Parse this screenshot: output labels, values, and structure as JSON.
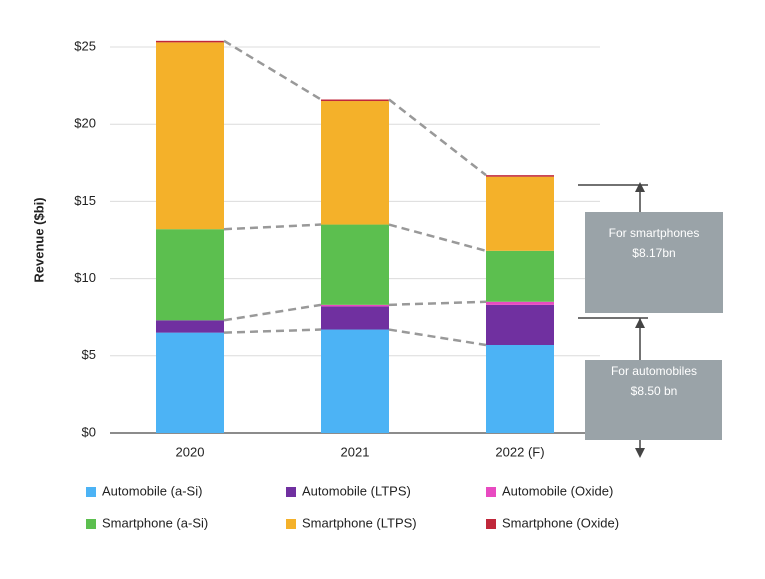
{
  "chart_data": {
    "type": "stacked_bar",
    "ylabel": "Revenue ($bi)",
    "categories": [
      "2020",
      "2021",
      "2022 (F)"
    ],
    "series": [
      {
        "name": "Automobile (a-Si)",
        "color": "#4cb3f5",
        "values": [
          6.5,
          6.7,
          5.7
        ]
      },
      {
        "name": "Automobile (LTPS)",
        "color": "#7030a0",
        "values": [
          0.8,
          1.5,
          2.6
        ]
      },
      {
        "name": "Automobile (Oxide)",
        "color": "#e84ac1",
        "values": [
          0,
          0.1,
          0.2
        ]
      },
      {
        "name": "Smartphone (a-Si)",
        "color": "#5cbf4f",
        "values": [
          5.9,
          5.2,
          3.3
        ]
      },
      {
        "name": "Smartphone (LTPS)",
        "color": "#f4b12a",
        "values": [
          12.1,
          8.0,
          4.8
        ]
      },
      {
        "name": "Smartphone (Oxide)",
        "color": "#c0273a",
        "values": [
          0.1,
          0.1,
          0.1
        ]
      }
    ],
    "ylim": [
      0,
      25
    ],
    "yticks": [
      {
        "value": 0,
        "label": "$0"
      },
      {
        "value": 5,
        "label": "$5"
      },
      {
        "value": 10,
        "label": "$10"
      },
      {
        "value": 15,
        "label": "$15"
      },
      {
        "value": 20,
        "label": "$20"
      },
      {
        "value": 25,
        "label": "$25"
      }
    ],
    "grid": true,
    "annotations": [
      {
        "line1": "For smartphones",
        "line2": "$8.17bn"
      },
      {
        "line1": "For automobiles",
        "line2": "$8.50 bn"
      }
    ]
  }
}
